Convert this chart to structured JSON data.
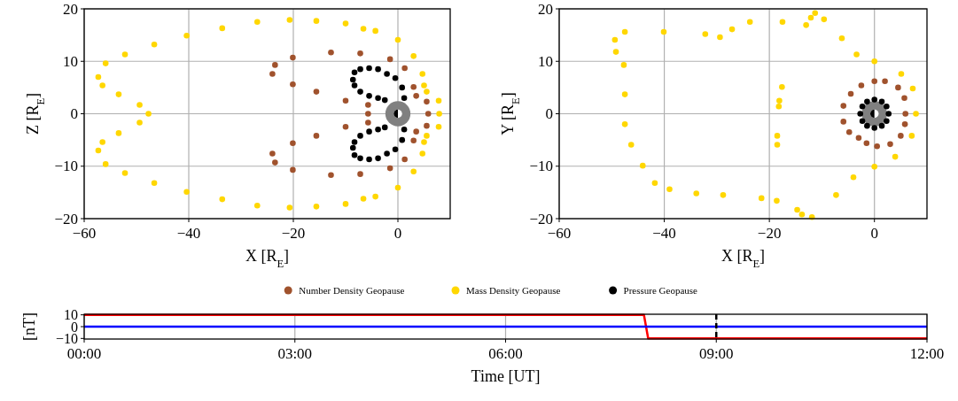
{
  "chart_data": [
    {
      "type": "scatter",
      "xlabel": "X [R$_{E}$]",
      "ylabel": "Z [R$_{E}$]",
      "xlim": [
        -60,
        10
      ],
      "ylim": [
        -20,
        20
      ],
      "xticks": [
        {
          "value": -60,
          "label": "−60"
        },
        {
          "value": -40,
          "label": "−40"
        },
        {
          "value": -20,
          "label": "−20"
        },
        0
      ],
      "yticks": [
        {
          "value": -20,
          "label": "−20"
        },
        {
          "value": -10,
          "label": "−10"
        },
        {
          "value": 0,
          "label": "0"
        },
        {
          "value": 10,
          "label": "10"
        },
        {
          "value": 20,
          "label": "20"
        }
      ],
      "grid": true,
      "marker": "circle",
      "legend": "bottom",
      "series": [
        {
          "name": "Number Density Geopause",
          "color": "#a0522d",
          "x": [
            5.8,
            5.5,
            3.5,
            3,
            1.3,
            -1.5,
            -7.2,
            -12.8,
            -20.1,
            -23.5,
            -24,
            -20.1,
            -15.6,
            -10,
            -5.7,
            -5.7,
            -5.7,
            -10,
            -15.6,
            -20.1,
            -24,
            -23.5,
            -20.1,
            -12.8,
            -7.2,
            -1.5,
            1.3,
            3,
            3.5,
            5.5
          ],
          "values": [
            0,
            2.3,
            3.4,
            5.1,
            8.7,
            10.4,
            11.5,
            11.7,
            10.7,
            9.3,
            7.6,
            5.6,
            4.2,
            2.5,
            1.7,
            0,
            -1.7,
            -2.5,
            -4.2,
            -5.6,
            -7.6,
            -9.3,
            -10.7,
            -11.7,
            -11.5,
            -10.4,
            -8.7,
            -5.1,
            -3.4,
            -2.3
          ]
        },
        {
          "name": "Mass Density Geopause",
          "color": "#ffd700",
          "x": [
            7.9,
            7.8,
            5.5,
            5,
            4.7,
            3,
            0,
            -4.3,
            -6.6,
            -10,
            -15.6,
            -20.7,
            -26.9,
            -33.6,
            -40.4,
            -46.6,
            -52.2,
            -55.9,
            -57.3,
            -56.5,
            -53.4,
            -49.4,
            -47.7,
            -49.4,
            -53.4,
            -56.5,
            -57.3,
            -55.9,
            -52.2,
            -46.6,
            -40.4,
            -33.6,
            -26.9,
            -20.7,
            -15.6,
            -10,
            -6.6,
            -4.3,
            0,
            3,
            4.7,
            5,
            5.5,
            7.8
          ],
          "values": [
            0,
            2.5,
            4.2,
            5.4,
            7.6,
            11,
            14.1,
            15.8,
            16.2,
            17.2,
            17.7,
            17.9,
            17.5,
            16.3,
            14.9,
            13.2,
            11.3,
            9.6,
            7,
            5.4,
            3.7,
            1.7,
            0,
            -1.7,
            -3.7,
            -5.4,
            -7,
            -9.6,
            -11.3,
            -13.2,
            -14.9,
            -16.3,
            -17.5,
            -17.9,
            -17.7,
            -17.2,
            -16.2,
            -15.8,
            -14.1,
            -11,
            -7.6,
            -5.4,
            -4.2,
            -2.5
          ]
        },
        {
          "name": "Pressure Geopause",
          "color": "#000000",
          "x": [
            1.2,
            0.8,
            -0.5,
            -2.1,
            -3.8,
            -5.5,
            -7.2,
            -8.3,
            -8.6,
            -8.3,
            -7.2,
            -5.5,
            -3.8,
            -2.5,
            1.2,
            0.8,
            -0.5,
            -2.1,
            -3.8,
            -5.5,
            -7.2,
            -8.3,
            -8.6,
            -8.3,
            -7.2,
            -5.5,
            -3.8,
            -2.5
          ],
          "values": [
            3,
            5,
            6.8,
            7.6,
            8.5,
            8.7,
            8.5,
            7.9,
            6.5,
            5.4,
            4.2,
            3.4,
            3,
            2.6,
            -3,
            -5,
            -6.8,
            -7.6,
            -8.5,
            -8.7,
            -8.5,
            -7.9,
            -6.5,
            -5.4,
            -4.2,
            -3.4,
            -3,
            -2.6
          ]
        }
      ]
    },
    {
      "type": "scatter",
      "xlabel": "X [R$_{E}$]",
      "ylabel": "Y [R$_{E}$]",
      "xlim": [
        -60,
        10
      ],
      "ylim": [
        -20,
        20
      ],
      "xticks": [
        {
          "value": -60,
          "label": "−60"
        },
        {
          "value": -40,
          "label": "−40"
        },
        {
          "value": -20,
          "label": "−20"
        },
        0
      ],
      "yticks": [
        {
          "value": -20,
          "label": "−20"
        },
        {
          "value": -10,
          "label": "−10"
        },
        0,
        10,
        20
      ],
      "grid": true,
      "marker": "circle",
      "series": [
        {
          "color": "#a0522d",
          "x": [
            5.9,
            5.7,
            4.5,
            2,
            0,
            -2.5,
            -4.5,
            -5.9,
            -5.9,
            -4.8,
            -3,
            -1.5,
            0.5,
            3,
            5,
            5.8
          ],
          "values": [
            0,
            3,
            5,
            6.2,
            6.2,
            5.4,
            3.8,
            1.5,
            -1.5,
            -3.5,
            -4.6,
            -5.6,
            -6.2,
            -5.8,
            -4.2,
            -2
          ]
        },
        {
          "color": "#ffd700",
          "x": [
            7.9,
            7.3,
            5.1,
            0,
            -3.4,
            -6.2,
            -9.6,
            -11.3,
            -12.1,
            -13,
            -17.5,
            -23.7,
            -27.1,
            -29.4,
            -32.2,
            -40.1,
            -47.5,
            -49.4,
            -49.2,
            -47.7,
            -47.5,
            -47.5,
            -46.3,
            -44.1,
            -41.8,
            -39,
            -33.9,
            -28.8,
            -21.5,
            -18.6,
            -14.7,
            -13.8,
            -11.9,
            -7.3,
            -4,
            0,
            3.95,
            7.1,
            -17.6,
            -18.1,
            -18.2,
            -18.5,
            -18.5
          ],
          "values": [
            0,
            4.8,
            7.6,
            10,
            11.3,
            14.4,
            18,
            19.2,
            18.3,
            16.9,
            17.5,
            17.5,
            16.1,
            14.6,
            15.2,
            15.6,
            15.6,
            14.1,
            11.8,
            9.3,
            3.7,
            -2,
            -5.9,
            -9.9,
            -13.2,
            -14.4,
            -15.2,
            -15.5,
            -16.1,
            -16.6,
            -18.3,
            -19.2,
            -19.7,
            -15.5,
            -12.1,
            -10.1,
            -8.2,
            -4.2,
            5.1,
            2.5,
            1.4,
            -4.2,
            -5.9
          ]
        },
        {
          "color": "#000000",
          "x": [
            2.7,
            2.3,
            1.4,
            0,
            -1.4,
            -2.3,
            -2.7,
            -2.3,
            -1.4,
            0,
            1.4,
            2.3
          ],
          "values": [
            0,
            1.4,
            2.3,
            2.7,
            2.3,
            1.4,
            0,
            -1.4,
            -2.3,
            -2.7,
            -2.3,
            -1.4
          ]
        }
      ]
    },
    {
      "type": "line",
      "xlabel": "Time [UT]",
      "ylabel": "[nT]",
      "xlim": [
        0,
        12
      ],
      "ylim": [
        -10.5,
        10.5
      ],
      "xticks": [
        {
          "value": 0,
          "label": "00:00"
        },
        {
          "value": 3,
          "label": "03:00"
        },
        {
          "value": 6,
          "label": "06:00"
        },
        {
          "value": 9,
          "label": "09:00"
        },
        {
          "value": 12,
          "label": "12:00"
        }
      ],
      "yticks": [
        {
          "value": -10,
          "label": "−10"
        },
        0,
        10
      ],
      "grid": "x",
      "line_style": "solid",
      "ref_lines": [
        {
          "axis": "x",
          "value": 9,
          "color": "#000000",
          "line_style": "dashed"
        }
      ],
      "series": [
        {
          "color": "#ff0000",
          "x": [
            0,
            7.97,
            8.03,
            12
          ],
          "values": [
            10,
            10,
            -10,
            -10
          ]
        },
        {
          "color": "#0000ff",
          "x": [
            0,
            12
          ],
          "values": [
            0,
            0
          ]
        }
      ]
    }
  ]
}
